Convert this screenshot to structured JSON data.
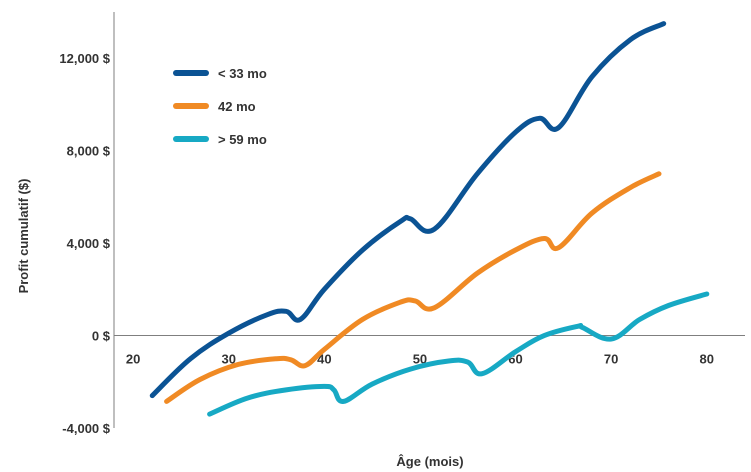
{
  "chart_data": {
    "type": "line",
    "title": "",
    "xlabel": "Âge (mois)",
    "ylabel": "Profit cumulatif ($)",
    "xlim": [
      18,
      84
    ],
    "ylim": [
      -4000,
      14000
    ],
    "x_ticks": [
      20,
      30,
      40,
      50,
      60,
      70,
      80
    ],
    "y_ticks": [
      {
        "value": -4000,
        "label": "-4,000 $"
      },
      {
        "value": 0,
        "label": "0 $"
      },
      {
        "value": 4000,
        "label": "4,000 $"
      },
      {
        "value": 8000,
        "label": "8,000 $"
      },
      {
        "value": 12000,
        "label": "12,000 $"
      }
    ],
    "grid": false,
    "legend_position": "top-left",
    "series": [
      {
        "name": "< 33 mo",
        "color": "#0b5394",
        "points": [
          [
            22,
            -2600
          ],
          [
            26,
            -1000
          ],
          [
            30,
            100
          ],
          [
            34,
            900
          ],
          [
            36,
            1050
          ],
          [
            37.5,
            700
          ],
          [
            40,
            2000
          ],
          [
            44,
            3700
          ],
          [
            48,
            4950
          ],
          [
            49,
            5050
          ],
          [
            51.5,
            4600
          ],
          [
            56,
            7000
          ],
          [
            60,
            8800
          ],
          [
            62.5,
            9400
          ],
          [
            64.5,
            9000
          ],
          [
            68,
            11200
          ],
          [
            72,
            12800
          ],
          [
            75.5,
            13500
          ]
        ]
      },
      {
        "name": "42 mo",
        "color": "#f08a24",
        "points": [
          [
            23.5,
            -2850
          ],
          [
            27,
            -1900
          ],
          [
            31,
            -1250
          ],
          [
            35,
            -1000
          ],
          [
            36.5,
            -1050
          ],
          [
            38,
            -1300
          ],
          [
            40,
            -600
          ],
          [
            44,
            700
          ],
          [
            48,
            1450
          ],
          [
            49.5,
            1500
          ],
          [
            51.5,
            1200
          ],
          [
            56,
            2700
          ],
          [
            60,
            3700
          ],
          [
            63,
            4200
          ],
          [
            64.5,
            3800
          ],
          [
            68,
            5300
          ],
          [
            72,
            6400
          ],
          [
            75,
            7000
          ]
        ]
      },
      {
        "name": "> 59 mo",
        "color": "#17a9c4",
        "points": [
          [
            28,
            -3400
          ],
          [
            32,
            -2700
          ],
          [
            36,
            -2350
          ],
          [
            40,
            -2200
          ],
          [
            41,
            -2350
          ],
          [
            42,
            -2850
          ],
          [
            45,
            -2100
          ],
          [
            49,
            -1450
          ],
          [
            53,
            -1100
          ],
          [
            55,
            -1150
          ],
          [
            56.5,
            -1650
          ],
          [
            60,
            -700
          ],
          [
            63,
            0
          ],
          [
            66.5,
            400
          ],
          [
            67,
            350
          ],
          [
            70,
            -150
          ],
          [
            73,
            700
          ],
          [
            76,
            1300
          ],
          [
            80,
            1800
          ]
        ]
      }
    ]
  }
}
